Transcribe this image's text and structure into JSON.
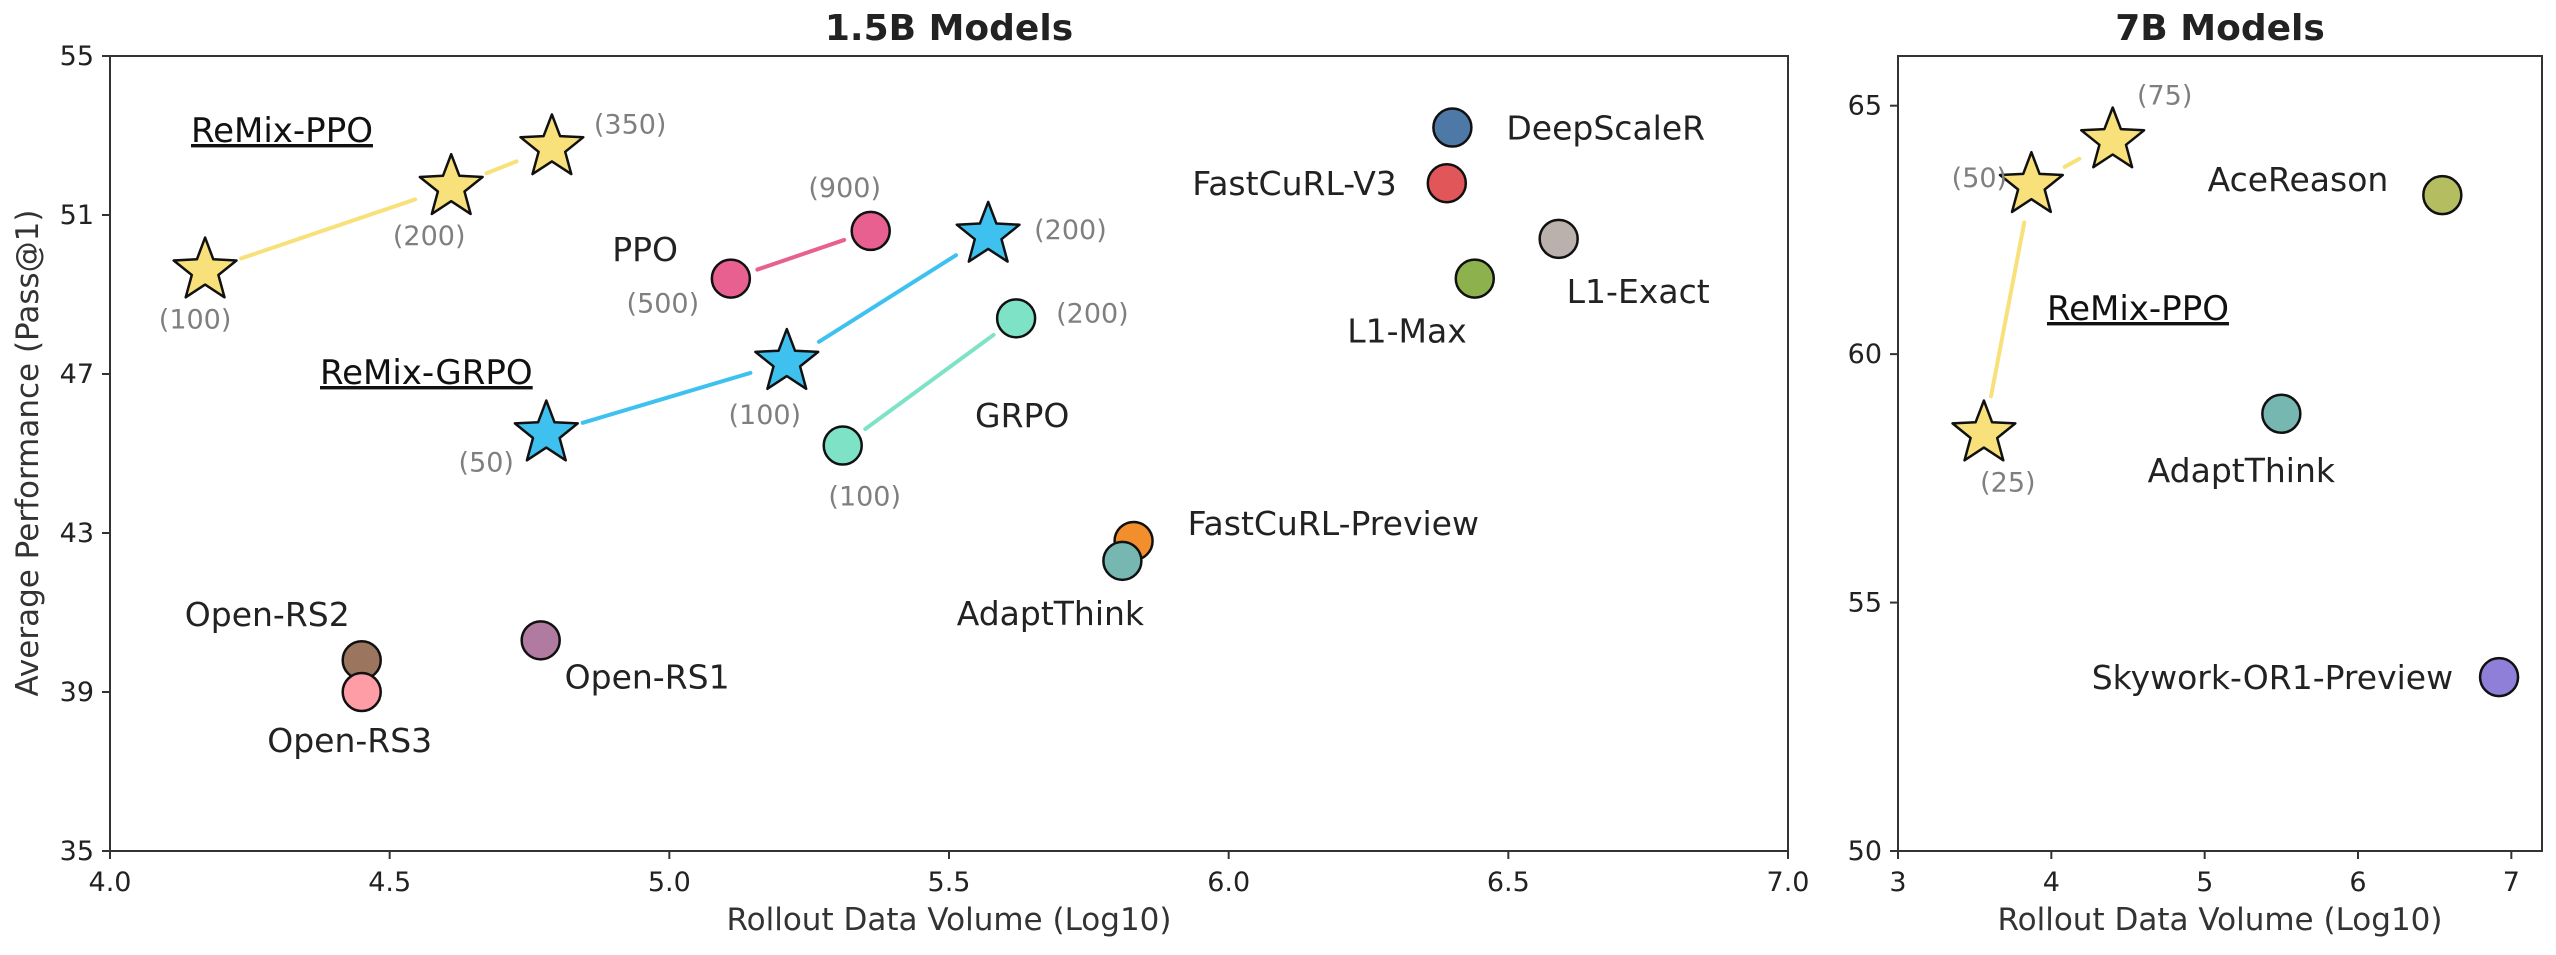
{
  "chart_data": [
    {
      "type": "scatter",
      "title": "1.5B Models",
      "xlabel": "Rollout Data Volume (Log10)",
      "ylabel": "Average Performance (Pass@1)",
      "xlim": [
        4.0,
        7.0
      ],
      "ylim": [
        35,
        55
      ],
      "xticks": [
        "4.0",
        "4.5",
        "5.0",
        "5.5",
        "6.0",
        "6.5",
        "7.0"
      ],
      "yticks": [
        "35",
        "39",
        "43",
        "47",
        "51",
        "55"
      ],
      "grid": false,
      "series": [
        {
          "name": "ReMix-PPO",
          "marker": "star",
          "color": "#F8E07A",
          "line_color": "#F8E07A",
          "points": [
            {
              "x": 4.17,
              "y": 49.6,
              "label": "(100)"
            },
            {
              "x": 4.61,
              "y": 51.7,
              "label": "(200)"
            },
            {
              "x": 4.79,
              "y": 52.7,
              "label": "(350)"
            }
          ]
        },
        {
          "name": "ReMix-GRPO",
          "marker": "star",
          "color": "#3FC1F0",
          "line_color": "#3FC1F0",
          "points": [
            {
              "x": 4.78,
              "y": 45.5,
              "label": "(50)"
            },
            {
              "x": 5.21,
              "y": 47.3,
              "label": "(100)"
            },
            {
              "x": 5.57,
              "y": 50.5,
              "label": "(200)"
            }
          ]
        },
        {
          "name": "PPO",
          "marker": "circle",
          "color": "#E8608F",
          "line_color": "#E8608F",
          "points": [
            {
              "x": 5.11,
              "y": 49.4,
              "label": "(500)"
            },
            {
              "x": 5.36,
              "y": 50.6,
              "label": "(900)"
            }
          ]
        },
        {
          "name": "GRPO",
          "marker": "circle",
          "color": "#7EE3C6",
          "line_color": "#7EE3C6",
          "points": [
            {
              "x": 5.31,
              "y": 45.2,
              "label": "(100)"
            },
            {
              "x": 5.62,
              "y": 48.4,
              "label": "(200)"
            }
          ]
        }
      ],
      "baselines": [
        {
          "name": "DeepScaleR",
          "x": 6.4,
          "y": 53.2,
          "color": "#4E79A7"
        },
        {
          "name": "FastCuRL-V3",
          "x": 6.39,
          "y": 51.8,
          "color": "#E15759"
        },
        {
          "name": "L1-Max",
          "x": 6.44,
          "y": 49.4,
          "color": "#8DB24D"
        },
        {
          "name": "L1-Exact",
          "x": 6.59,
          "y": 50.4,
          "color": "#BAB0AC"
        },
        {
          "name": "FastCuRL-Preview",
          "x": 5.83,
          "y": 42.8,
          "color": "#F28E2B"
        },
        {
          "name": "AdaptThink",
          "x": 5.81,
          "y": 42.3,
          "color": "#76B7B2"
        },
        {
          "name": "Open-RS1",
          "x": 4.77,
          "y": 40.3,
          "color": "#B07AA1"
        },
        {
          "name": "Open-RS2",
          "x": 4.45,
          "y": 39.8,
          "color": "#9C755F"
        },
        {
          "name": "Open-RS3",
          "x": 4.45,
          "y": 39.0,
          "color": "#FF9DA7"
        }
      ]
    },
    {
      "type": "scatter",
      "title": "7B Models",
      "xlabel": "Rollout Data Volume (Log10)",
      "ylabel": "",
      "xlim": [
        3,
        7.2
      ],
      "ylim": [
        50,
        66
      ],
      "xticks": [
        "3",
        "4",
        "5",
        "6",
        "7"
      ],
      "yticks": [
        "50",
        "55",
        "60",
        "65"
      ],
      "grid": false,
      "series": [
        {
          "name": "ReMix-PPO",
          "marker": "star",
          "color": "#F8E07A",
          "line_color": "#F8E07A",
          "points": [
            {
              "x": 3.56,
              "y": 58.4,
              "label": "(25)"
            },
            {
              "x": 3.87,
              "y": 63.4,
              "label": "(50)"
            },
            {
              "x": 4.4,
              "y": 64.3,
              "label": "(75)"
            }
          ]
        }
      ],
      "baselines": [
        {
          "name": "AceReason",
          "x": 6.55,
          "y": 63.2,
          "color": "#B5BD61"
        },
        {
          "name": "AdaptThink",
          "x": 5.5,
          "y": 58.8,
          "color": "#76B7B2"
        },
        {
          "name": "Skywork-OR1-Preview",
          "x": 6.92,
          "y": 53.5,
          "color": "#8F7FD8"
        }
      ]
    }
  ]
}
